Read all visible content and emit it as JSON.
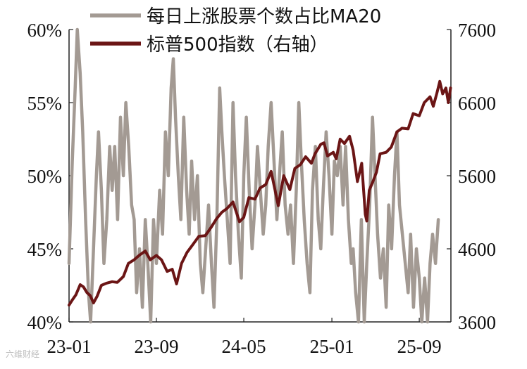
{
  "chart_data": {
    "type": "line",
    "x_tick_labels": [
      "23-01",
      "23-09",
      "24-05",
      "25-01",
      "25-09"
    ],
    "x_range": [
      "2023-01",
      "2025-11"
    ],
    "y_left": {
      "ticks": [
        "40%",
        "45%",
        "50%",
        "55%",
        "60%"
      ],
      "range": [
        40,
        60
      ]
    },
    "y_right": {
      "ticks": [
        "3600",
        "4600",
        "5600",
        "6600",
        "7600"
      ],
      "range": [
        3600,
        7600
      ]
    },
    "grid": false,
    "legend_position": "top",
    "series": [
      {
        "name": "每日上涨股票个数占比MA20",
        "axis": "left",
        "color": "#a39a93",
        "points": [
          [
            "2023-01-01",
            44
          ],
          [
            "2023-01-10",
            51
          ],
          [
            "2023-01-18",
            56
          ],
          [
            "2023-01-24",
            60
          ],
          [
            "2023-02-01",
            57
          ],
          [
            "2023-02-08",
            53
          ],
          [
            "2023-02-16",
            47
          ],
          [
            "2023-02-24",
            42
          ],
          [
            "2023-03-02",
            40
          ],
          [
            "2023-03-10",
            45
          ],
          [
            "2023-03-18",
            50
          ],
          [
            "2023-03-24",
            53
          ],
          [
            "2023-04-01",
            49
          ],
          [
            "2023-04-08",
            44
          ],
          [
            "2023-04-16",
            47
          ],
          [
            "2023-04-24",
            52
          ],
          [
            "2023-05-01",
            49
          ],
          [
            "2023-05-08",
            52
          ],
          [
            "2023-05-16",
            47
          ],
          [
            "2023-05-24",
            54
          ],
          [
            "2023-06-01",
            50
          ],
          [
            "2023-06-08",
            55
          ],
          [
            "2023-06-16",
            52
          ],
          [
            "2023-06-24",
            48
          ],
          [
            "2023-07-01",
            47
          ],
          [
            "2023-07-08",
            42
          ],
          [
            "2023-07-16",
            45
          ],
          [
            "2023-07-24",
            41
          ],
          [
            "2023-08-01",
            47
          ],
          [
            "2023-08-08",
            44
          ],
          [
            "2023-08-16",
            40
          ],
          [
            "2023-08-24",
            47
          ],
          [
            "2023-09-01",
            44
          ],
          [
            "2023-09-10",
            49
          ],
          [
            "2023-09-18",
            46
          ],
          [
            "2023-09-26",
            53
          ],
          [
            "2023-10-04",
            50
          ],
          [
            "2023-10-12",
            56
          ],
          [
            "2023-10-18",
            58
          ],
          [
            "2023-10-24",
            54
          ],
          [
            "2023-11-01",
            50
          ],
          [
            "2023-11-08",
            47
          ],
          [
            "2023-11-16",
            54
          ],
          [
            "2023-11-24",
            49
          ],
          [
            "2023-12-01",
            46
          ],
          [
            "2023-12-08",
            51
          ],
          [
            "2023-12-16",
            47
          ],
          [
            "2023-12-24",
            50
          ],
          [
            "2024-01-01",
            44
          ],
          [
            "2024-01-08",
            42
          ],
          [
            "2024-01-16",
            45
          ],
          [
            "2024-01-24",
            48
          ],
          [
            "2024-02-01",
            44
          ],
          [
            "2024-02-08",
            41
          ],
          [
            "2024-02-16",
            47
          ],
          [
            "2024-02-24",
            56
          ],
          [
            "2024-03-01",
            53
          ],
          [
            "2024-03-08",
            50
          ],
          [
            "2024-03-16",
            47
          ],
          [
            "2024-03-24",
            44
          ],
          [
            "2024-04-01",
            55
          ],
          [
            "2024-04-08",
            50
          ],
          [
            "2024-04-16",
            46
          ],
          [
            "2024-04-24",
            43
          ],
          [
            "2024-05-01",
            50
          ],
          [
            "2024-05-08",
            54
          ],
          [
            "2024-05-16",
            49
          ],
          [
            "2024-05-24",
            45
          ],
          [
            "2024-06-01",
            48
          ],
          [
            "2024-06-08",
            52
          ],
          [
            "2024-06-16",
            49
          ],
          [
            "2024-06-24",
            46
          ],
          [
            "2024-07-01",
            48
          ],
          [
            "2024-07-08",
            52
          ],
          [
            "2024-07-16",
            55
          ],
          [
            "2024-07-24",
            51
          ],
          [
            "2024-08-01",
            47
          ],
          [
            "2024-08-08",
            50
          ],
          [
            "2024-08-16",
            53
          ],
          [
            "2024-08-24",
            48
          ],
          [
            "2024-09-01",
            46
          ],
          [
            "2024-09-08",
            48
          ],
          [
            "2024-09-16",
            44
          ],
          [
            "2024-09-24",
            49
          ],
          [
            "2024-10-01",
            55
          ],
          [
            "2024-10-08",
            51
          ],
          [
            "2024-10-16",
            47
          ],
          [
            "2024-10-24",
            44
          ],
          [
            "2024-11-01",
            42
          ],
          [
            "2024-11-08",
            49
          ],
          [
            "2024-11-16",
            52
          ],
          [
            "2024-11-24",
            47
          ],
          [
            "2024-12-01",
            45
          ],
          [
            "2024-12-08",
            49
          ],
          [
            "2024-12-16",
            53
          ],
          [
            "2024-12-24",
            50
          ],
          [
            "2025-01-01",
            46
          ],
          [
            "2025-01-08",
            51
          ],
          [
            "2025-01-16",
            50
          ],
          [
            "2025-01-24",
            52
          ],
          [
            "2025-02-01",
            48
          ],
          [
            "2025-02-08",
            52
          ],
          [
            "2025-02-16",
            47
          ],
          [
            "2025-02-24",
            44
          ],
          [
            "2025-03-01",
            45
          ],
          [
            "2025-03-08",
            42
          ],
          [
            "2025-03-16",
            40
          ],
          [
            "2025-03-24",
            47
          ],
          [
            "2025-04-01",
            40
          ],
          [
            "2025-04-08",
            44
          ],
          [
            "2025-04-16",
            48
          ],
          [
            "2025-04-24",
            54
          ],
          [
            "2025-05-01",
            50
          ],
          [
            "2025-05-08",
            46
          ],
          [
            "2025-05-16",
            43
          ],
          [
            "2025-05-24",
            45
          ],
          [
            "2025-06-01",
            41
          ],
          [
            "2025-06-08",
            48
          ],
          [
            "2025-06-16",
            45
          ],
          [
            "2025-06-24",
            50
          ],
          [
            "2025-07-01",
            53
          ],
          [
            "2025-07-08",
            48
          ],
          [
            "2025-07-16",
            46
          ],
          [
            "2025-07-24",
            44
          ],
          [
            "2025-08-01",
            42
          ],
          [
            "2025-08-08",
            46
          ],
          [
            "2025-08-16",
            41
          ],
          [
            "2025-08-24",
            45
          ],
          [
            "2025-09-01",
            43
          ],
          [
            "2025-09-08",
            40
          ],
          [
            "2025-09-16",
            43
          ],
          [
            "2025-09-24",
            40
          ],
          [
            "2025-10-01",
            44
          ],
          [
            "2025-10-08",
            46
          ],
          [
            "2025-10-16",
            44
          ],
          [
            "2025-10-24",
            47
          ]
        ]
      },
      {
        "name": "标普500指数（右轴）",
        "axis": "right",
        "color": "#6b1515",
        "points": [
          [
            "2023-01-01",
            3830
          ],
          [
            "2023-01-10",
            3900
          ],
          [
            "2023-01-20",
            3970
          ],
          [
            "2023-02-01",
            4110
          ],
          [
            "2023-02-10",
            4080
          ],
          [
            "2023-02-20",
            4000
          ],
          [
            "2023-03-01",
            3960
          ],
          [
            "2023-03-10",
            3860
          ],
          [
            "2023-03-20",
            3950
          ],
          [
            "2023-04-01",
            4100
          ],
          [
            "2023-04-15",
            4130
          ],
          [
            "2023-05-01",
            4150
          ],
          [
            "2023-05-15",
            4140
          ],
          [
            "2023-06-01",
            4220
          ],
          [
            "2023-06-15",
            4400
          ],
          [
            "2023-07-01",
            4450
          ],
          [
            "2023-07-15",
            4510
          ],
          [
            "2023-08-01",
            4570
          ],
          [
            "2023-08-15",
            4450
          ],
          [
            "2023-09-01",
            4510
          ],
          [
            "2023-09-15",
            4450
          ],
          [
            "2023-10-01",
            4290
          ],
          [
            "2023-10-15",
            4320
          ],
          [
            "2023-10-27",
            4120
          ],
          [
            "2023-11-10",
            4400
          ],
          [
            "2023-11-25",
            4550
          ],
          [
            "2023-12-10",
            4650
          ],
          [
            "2023-12-28",
            4770
          ],
          [
            "2024-01-15",
            4780
          ],
          [
            "2024-02-01",
            4900
          ],
          [
            "2024-02-15",
            5010
          ],
          [
            "2024-03-01",
            5100
          ],
          [
            "2024-03-15",
            5150
          ],
          [
            "2024-04-01",
            5240
          ],
          [
            "2024-04-19",
            4970
          ],
          [
            "2024-05-01",
            5030
          ],
          [
            "2024-05-15",
            5300
          ],
          [
            "2024-06-01",
            5280
          ],
          [
            "2024-06-15",
            5430
          ],
          [
            "2024-07-01",
            5480
          ],
          [
            "2024-07-16",
            5660
          ],
          [
            "2024-08-05",
            5190
          ],
          [
            "2024-08-20",
            5600
          ],
          [
            "2024-09-06",
            5410
          ],
          [
            "2024-09-20",
            5700
          ],
          [
            "2024-10-05",
            5750
          ],
          [
            "2024-10-20",
            5860
          ],
          [
            "2024-11-05",
            5770
          ],
          [
            "2024-11-15",
            5900
          ],
          [
            "2024-12-01",
            6030
          ],
          [
            "2024-12-10",
            6050
          ],
          [
            "2024-12-20",
            5870
          ],
          [
            "2025-01-05",
            5920
          ],
          [
            "2025-01-13",
            5830
          ],
          [
            "2025-01-24",
            6100
          ],
          [
            "2025-02-05",
            6040
          ],
          [
            "2025-02-19",
            6140
          ],
          [
            "2025-03-01",
            5950
          ],
          [
            "2025-03-13",
            5520
          ],
          [
            "2025-03-25",
            5770
          ],
          [
            "2025-04-04",
            5070
          ],
          [
            "2025-04-08",
            4980
          ],
          [
            "2025-04-15",
            5400
          ],
          [
            "2025-04-25",
            5520
          ],
          [
            "2025-05-05",
            5650
          ],
          [
            "2025-05-15",
            5900
          ],
          [
            "2025-06-01",
            5920
          ],
          [
            "2025-06-15",
            5990
          ],
          [
            "2025-07-01",
            6200
          ],
          [
            "2025-07-15",
            6250
          ],
          [
            "2025-08-01",
            6240
          ],
          [
            "2025-08-15",
            6450
          ],
          [
            "2025-09-01",
            6420
          ],
          [
            "2025-09-15",
            6600
          ],
          [
            "2025-10-01",
            6680
          ],
          [
            "2025-10-10",
            6550
          ],
          [
            "2025-10-20",
            6730
          ],
          [
            "2025-10-28",
            6890
          ],
          [
            "2025-11-05",
            6720
          ],
          [
            "2025-11-14",
            6800
          ],
          [
            "2025-11-21",
            6600
          ],
          [
            "2025-11-27",
            6800
          ]
        ]
      }
    ]
  },
  "watermark": "六维财经"
}
